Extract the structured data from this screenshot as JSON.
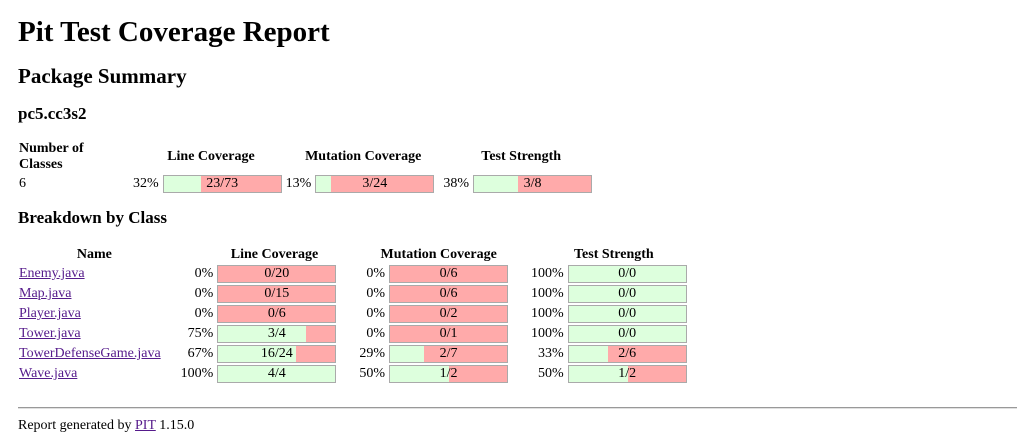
{
  "title": "Pit Test Coverage Report",
  "package_summary_heading": "Package Summary",
  "package_name": "pc5.cc3s2",
  "summary": {
    "headers": [
      "Number of Classes",
      "Line Coverage",
      "Mutation Coverage",
      "Test Strength"
    ],
    "num_classes": "6",
    "line": {
      "pct": "32%",
      "label": "23/73",
      "covered": 23,
      "total": 73
    },
    "mutation": {
      "pct": "13%",
      "label": "3/24",
      "covered": 3,
      "total": 24
    },
    "strength": {
      "pct": "38%",
      "label": "3/8",
      "covered": 3,
      "total": 8
    }
  },
  "breakdown_heading": "Breakdown by Class",
  "breakdown": {
    "headers": [
      "Name",
      "Line Coverage",
      "Mutation Coverage",
      "Test Strength"
    ],
    "rows": [
      {
        "name": "Enemy.java",
        "line": {
          "pct": "0%",
          "label": "0/20",
          "fill": 0
        },
        "mutation": {
          "pct": "0%",
          "label": "0/6",
          "fill": 0
        },
        "strength": {
          "pct": "100%",
          "label": "0/0",
          "fill": 1
        }
      },
      {
        "name": "Map.java",
        "line": {
          "pct": "0%",
          "label": "0/15",
          "fill": 0
        },
        "mutation": {
          "pct": "0%",
          "label": "0/6",
          "fill": 0
        },
        "strength": {
          "pct": "100%",
          "label": "0/0",
          "fill": 1
        }
      },
      {
        "name": "Player.java",
        "line": {
          "pct": "0%",
          "label": "0/6",
          "fill": 0
        },
        "mutation": {
          "pct": "0%",
          "label": "0/2",
          "fill": 0
        },
        "strength": {
          "pct": "100%",
          "label": "0/0",
          "fill": 1
        }
      },
      {
        "name": "Tower.java",
        "line": {
          "pct": "75%",
          "label": "3/4",
          "fill": 0.75
        },
        "mutation": {
          "pct": "0%",
          "label": "0/1",
          "fill": 0
        },
        "strength": {
          "pct": "100%",
          "label": "0/0",
          "fill": 1
        }
      },
      {
        "name": "TowerDefenseGame.java",
        "line": {
          "pct": "67%",
          "label": "16/24",
          "fill": 0.67
        },
        "mutation": {
          "pct": "29%",
          "label": "2/7",
          "fill": 0.29
        },
        "strength": {
          "pct": "33%",
          "label": "2/6",
          "fill": 0.33
        }
      },
      {
        "name": "Wave.java",
        "line": {
          "pct": "100%",
          "label": "4/4",
          "fill": 1
        },
        "mutation": {
          "pct": "50%",
          "label": "1/2",
          "fill": 0.5
        },
        "strength": {
          "pct": "50%",
          "label": "1/2",
          "fill": 0.5
        }
      }
    ]
  },
  "footer": {
    "prefix": "Report generated by",
    "link": "PIT",
    "version": "1.15.0"
  },
  "colors": {
    "covered": "#ddffdd",
    "uncovered": "#ffaaaa",
    "link": "#551a8b"
  }
}
